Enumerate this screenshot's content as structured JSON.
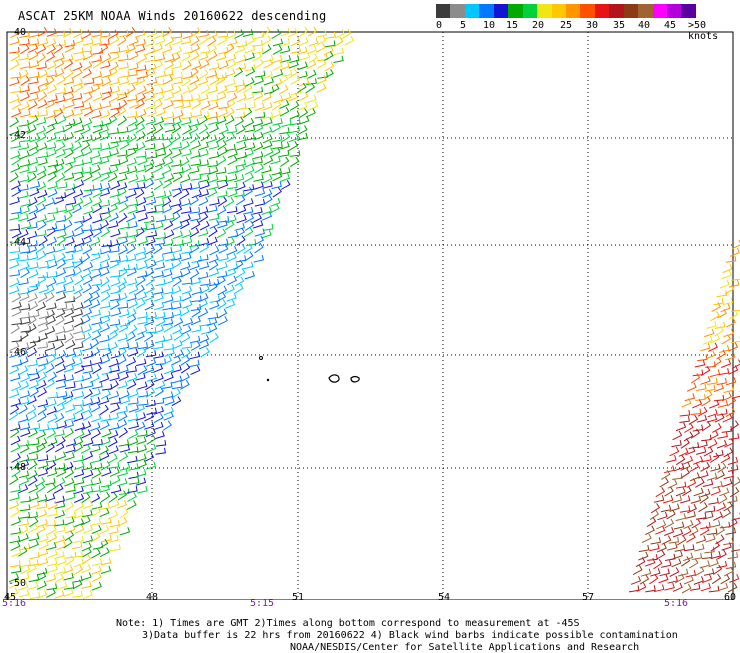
{
  "title": "ASCAT 25KM NOAA Winds 20160622 descending",
  "scale": {
    "labels": [
      "0",
      "5",
      "10",
      "15",
      "20",
      "25",
      "30",
      "35",
      "40",
      "45",
      ">50 knots"
    ],
    "colors": [
      "#3c3c3c",
      "#8c8c8c",
      "#00c8ff",
      "#0078ff",
      "#1414d2",
      "#00aa00",
      "#00d23c",
      "#f0e614",
      "#ffc800",
      "#ff9600",
      "#ff5000",
      "#e61414",
      "#b4141e",
      "#8c3c14",
      "#a06432",
      "#ff00ff",
      "#b400dc",
      "#5a00a0"
    ]
  },
  "axes": {
    "lat_labels": [
      "-40",
      "-42",
      "-44",
      "-46",
      "-48",
      "-50"
    ],
    "lon_labels": [
      "45",
      "48",
      "51",
      "54",
      "57",
      "60"
    ]
  },
  "pass_times": [
    "5:16",
    "5:15",
    "5:16"
  ],
  "notes": {
    "line1": "Note: 1) Times are GMT 2)Times along bottom correspond to measurement at -45S",
    "line2": "3)Data buffer is 22 hrs from 20160622 4) Black wind barbs indicate possible contamination",
    "line3": "NOAA/NESDIS/Center for Satellite Applications and Research"
  }
}
